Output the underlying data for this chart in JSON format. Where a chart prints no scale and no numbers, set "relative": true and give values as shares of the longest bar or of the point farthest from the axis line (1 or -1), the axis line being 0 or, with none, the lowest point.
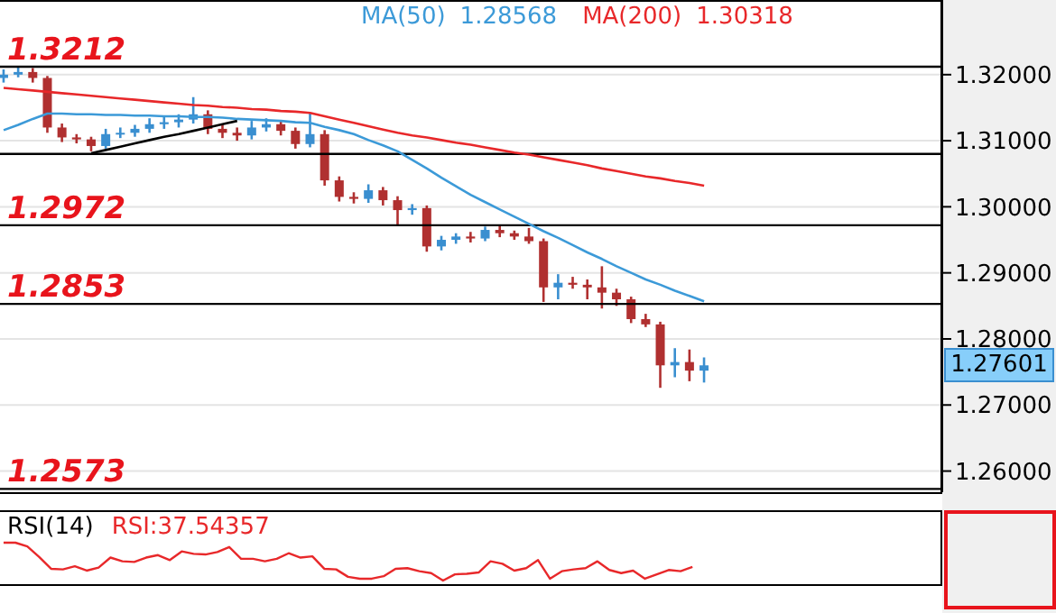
{
  "chart_data": [
    {
      "type": "candlestick",
      "categories": [
        null,
        null,
        null,
        null,
        null,
        null,
        null,
        null,
        null,
        null,
        null,
        null,
        null,
        null,
        null,
        null,
        null,
        null,
        null,
        null,
        null,
        null,
        null,
        null,
        null,
        null,
        null,
        null,
        null,
        null,
        null,
        null,
        null,
        null,
        null,
        null,
        null,
        null,
        null,
        null,
        null,
        null,
        null,
        null,
        null,
        null,
        null,
        null,
        null
      ],
      "ohlc": [
        [
          1.3195,
          1.3208,
          1.3188,
          1.32
        ],
        [
          1.32,
          1.3212,
          1.3196,
          1.3204
        ],
        [
          1.3204,
          1.321,
          1.3188,
          1.3195
        ],
        [
          1.3195,
          1.3198,
          1.3112,
          1.312
        ],
        [
          1.312,
          1.3126,
          1.3098,
          1.3105
        ],
        [
          1.3105,
          1.311,
          1.3096,
          1.3102
        ],
        [
          1.3102,
          1.3106,
          1.3084,
          1.3092
        ],
        [
          1.3092,
          1.3118,
          1.3088,
          1.311
        ],
        [
          1.311,
          1.312,
          1.3104,
          1.3112
        ],
        [
          1.3112,
          1.3124,
          1.3106,
          1.3118
        ],
        [
          1.3118,
          1.3134,
          1.3112,
          1.3125
        ],
        [
          1.3125,
          1.3136,
          1.3118,
          1.3128
        ],
        [
          1.3128,
          1.314,
          1.312,
          1.3132
        ],
        [
          1.3132,
          1.3166,
          1.3126,
          1.314
        ],
        [
          1.314,
          1.3146,
          1.311,
          1.3118
        ],
        [
          1.3118,
          1.3124,
          1.3104,
          1.3112
        ],
        [
          1.3112,
          1.312,
          1.31,
          1.3108
        ],
        [
          1.3108,
          1.313,
          1.3102,
          1.312
        ],
        [
          1.312,
          1.3134,
          1.3114,
          1.3125
        ],
        [
          1.3125,
          1.313,
          1.3108,
          1.3115
        ],
        [
          1.3115,
          1.312,
          1.3088,
          1.3095
        ],
        [
          1.3095,
          1.3142,
          1.309,
          1.311
        ],
        [
          1.311,
          1.3116,
          1.3032,
          1.304
        ],
        [
          1.304,
          1.3046,
          1.3008,
          1.3015
        ],
        [
          1.3015,
          1.3022,
          1.3005,
          1.3012
        ],
        [
          1.3012,
          1.3034,
          1.3006,
          1.3025
        ],
        [
          1.3025,
          1.303,
          1.3002,
          1.301
        ],
        [
          1.301,
          1.3016,
          1.2972,
          1.2995
        ],
        [
          1.2995,
          1.3004,
          1.2988,
          1.2998
        ],
        [
          1.2998,
          1.3002,
          1.2932,
          1.294
        ],
        [
          1.294,
          1.2956,
          1.2934,
          1.295
        ],
        [
          1.295,
          1.296,
          1.2944,
          1.2955
        ],
        [
          1.2955,
          1.2962,
          1.2946,
          1.2952
        ],
        [
          1.2952,
          1.297,
          1.2948,
          1.2965
        ],
        [
          1.2965,
          1.2972,
          1.2954,
          1.296
        ],
        [
          1.296,
          1.2964,
          1.295,
          1.2955
        ],
        [
          1.2955,
          1.2968,
          1.2944,
          1.2948
        ],
        [
          1.2948,
          1.2952,
          1.2856,
          1.2878
        ],
        [
          1.2878,
          1.2898,
          1.286,
          1.2885
        ],
        [
          1.2885,
          1.2894,
          1.2876,
          1.2882
        ],
        [
          1.2882,
          1.289,
          1.286,
          1.2878
        ],
        [
          1.2878,
          1.291,
          1.2846,
          1.287
        ],
        [
          1.287,
          1.2876,
          1.285,
          1.286
        ],
        [
          1.286,
          1.2864,
          1.2824,
          1.283
        ],
        [
          1.283,
          1.2838,
          1.2818,
          1.2822
        ],
        [
          1.2822,
          1.2826,
          1.2726,
          1.276
        ],
        [
          1.276,
          1.2786,
          1.2742,
          1.2765
        ],
        [
          1.2765,
          1.2784,
          1.2736,
          1.2752
        ],
        [
          1.2752,
          1.2772,
          1.2734,
          1.276
        ]
      ],
      "series": [
        {
          "type": "line",
          "name": "MA(50)",
          "color": "#3c9ad8",
          "values": [
            1.3116,
            1.3124,
            1.3133,
            1.3141,
            1.3141,
            1.314,
            1.314,
            1.3139,
            1.3139,
            1.3138,
            1.3138,
            1.3137,
            1.3137,
            1.3136,
            1.3136,
            1.3135,
            1.3133,
            1.3132,
            1.3131,
            1.313,
            1.3128,
            1.3127,
            1.3121,
            1.3116,
            1.311,
            1.3101,
            1.3093,
            1.3084,
            1.3071,
            1.3058,
            1.3044,
            1.3031,
            1.3018,
            1.3007,
            1.2996,
            1.2985,
            1.2974,
            1.2963,
            1.2953,
            1.2942,
            1.2931,
            1.2921,
            1.291,
            1.29,
            1.289,
            1.2882,
            1.2873,
            1.2865,
            1.2857
          ]
        },
        {
          "type": "line",
          "name": "MA(200)",
          "color": "#e8282a",
          "values": [
            1.318,
            1.3178,
            1.3176,
            1.3174,
            1.3172,
            1.317,
            1.3168,
            1.3166,
            1.3164,
            1.3162,
            1.316,
            1.3158,
            1.3156,
            1.3154,
            1.3153,
            1.3151,
            1.315,
            1.3148,
            1.3147,
            1.3145,
            1.3144,
            1.3142,
            1.3137,
            1.3132,
            1.3127,
            1.3122,
            1.3117,
            1.3112,
            1.3108,
            1.3105,
            1.3101,
            1.3097,
            1.3094,
            1.309,
            1.3086,
            1.3082,
            1.3079,
            1.3075,
            1.3071,
            1.3067,
            1.3063,
            1.3058,
            1.3054,
            1.305,
            1.3046,
            1.3043,
            1.3039,
            1.3036,
            1.3032
          ]
        },
        {
          "type": "line",
          "color": "#000000",
          "values": [
            null,
            null,
            null,
            null,
            null,
            null,
            1.3081,
            1.3086,
            1.3091,
            1.3096,
            1.3101,
            1.3106,
            1.311,
            1.3115,
            1.312,
            1.3125,
            1.313,
            null,
            null,
            null,
            null,
            null,
            null,
            null,
            null,
            null,
            null,
            null,
            null,
            null,
            null,
            null,
            null,
            null,
            null,
            null,
            null,
            null,
            null,
            null,
            null,
            null,
            null,
            null,
            null,
            null,
            null,
            null,
            null
          ]
        }
      ],
      "annotations": [
        "1.28568",
        "1.30318",
        "1.27601"
      ],
      "ylim": [
        1.2568,
        1.3313
      ],
      "yticks": [
        {
          "value": 1.26,
          "label": "1.26000"
        },
        {
          "value": 1.27,
          "label": "1.27000"
        },
        {
          "value": 1.28,
          "label": "1.28000"
        },
        {
          "value": 1.29,
          "label": "1.29000"
        },
        {
          "value": 1.3,
          "label": "1.30000"
        },
        {
          "value": 1.31,
          "label": "1.31000"
        },
        {
          "value": 1.32,
          "label": "1.32000"
        }
      ],
      "ref_lines": [
        {
          "axis": "y",
          "value": 1.3212,
          "label": "1.3212",
          "color": "#000000"
        },
        {
          "axis": "y",
          "value": 1.308,
          "color": "#000000"
        },
        {
          "axis": "y",
          "value": 1.2972,
          "label": "1.2972",
          "color": "#000000"
        },
        {
          "axis": "y",
          "value": 1.2853,
          "label": "1.2853",
          "color": "#000000"
        },
        {
          "axis": "y",
          "value": 1.2573,
          "label": "1.2573",
          "color": "#000000"
        }
      ],
      "grid": "y",
      "legend": "top",
      "tick_labels": "y"
    },
    {
      "type": "line",
      "title": "RSI(14)",
      "relative": true,
      "tick_labels": false,
      "categories": [
        null,
        null,
        null,
        null,
        null,
        null,
        null,
        null,
        null,
        null,
        null,
        null,
        null,
        null,
        null,
        null,
        null,
        null,
        null,
        null,
        null,
        null,
        null,
        null,
        null,
        null,
        null,
        null,
        null,
        null,
        null,
        null,
        null,
        null,
        null,
        null,
        null,
        null,
        null,
        null,
        null,
        null,
        null,
        null,
        null,
        null,
        null,
        null,
        null,
        null,
        null,
        null,
        null,
        null,
        null,
        null,
        null,
        null,
        null
      ],
      "series": [
        {
          "name": "RSI:37.54357",
          "color": "#e8282a",
          "values": [
            1,
            1,
            0.902,
            0.623,
            0.311,
            0.295,
            0.377,
            0.262,
            0.344,
            0.607,
            0.508,
            0.492,
            0.607,
            0.672,
            0.541,
            0.77,
            0.705,
            0.689,
            0.754,
            0.885,
            0.574,
            0.574,
            0.508,
            0.574,
            0.721,
            0.607,
            0.639,
            0.311,
            0.295,
            0.098,
            0.049,
            0.049,
            0.115,
            0.311,
            0.328,
            0.246,
            0.197,
            0,
            0.164,
            0.18,
            0.213,
            0.508,
            0.443,
            0.262,
            0.328,
            0.541,
            0.049,
            0.246,
            0.295,
            0.328,
            0.508,
            0.279,
            0.197,
            0.262,
            0.049,
            0.164,
            0.279,
            0.246,
            0.361
          ]
        }
      ]
    }
  ]
}
